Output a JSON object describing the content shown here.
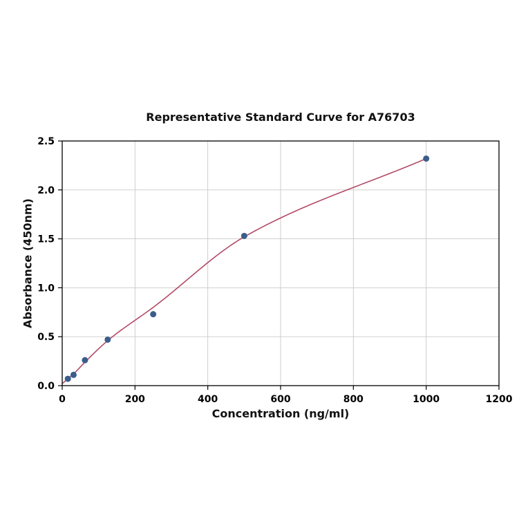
{
  "figure": {
    "background": "#ffffff"
  },
  "chart_data": {
    "type": "scatter",
    "title": "Representative Standard Curve for A76703",
    "xlabel": "Concentration (ng/ml)",
    "ylabel": "Absorbance (450nm)",
    "xlim": [
      0,
      1200
    ],
    "ylim": [
      0,
      2.5
    ],
    "x_ticks": [
      0,
      200,
      400,
      600,
      800,
      1000,
      1200
    ],
    "x_tick_labels": [
      "0",
      "200",
      "400",
      "600",
      "800",
      "1000",
      "1200"
    ],
    "y_ticks": [
      0,
      0.5,
      1.0,
      1.5,
      2.0,
      2.5
    ],
    "y_tick_labels": [
      "0.0",
      "0.5",
      "1.0",
      "1.5",
      "2.0",
      "2.5"
    ],
    "grid": true,
    "legend": "none",
    "points": {
      "x": [
        15.6,
        31.2,
        62.5,
        125,
        250,
        500,
        1000
      ],
      "y": [
        0.07,
        0.11,
        0.26,
        0.47,
        0.73,
        1.53,
        2.32
      ],
      "color": "#3a5e8c",
      "radius": 4.5
    },
    "fit_curve": {
      "anchors_x": [
        0,
        15.6,
        31.2,
        62.5,
        125,
        250,
        500,
        1000
      ],
      "anchors_y": [
        0.02,
        0.07,
        0.12,
        0.24,
        0.46,
        0.8,
        1.52,
        2.32
      ],
      "color": "#b24a66",
      "width": 1.6
    },
    "colors": {
      "grid": "#c9c9c9",
      "axis": "#000000",
      "text": "#000000"
    }
  }
}
